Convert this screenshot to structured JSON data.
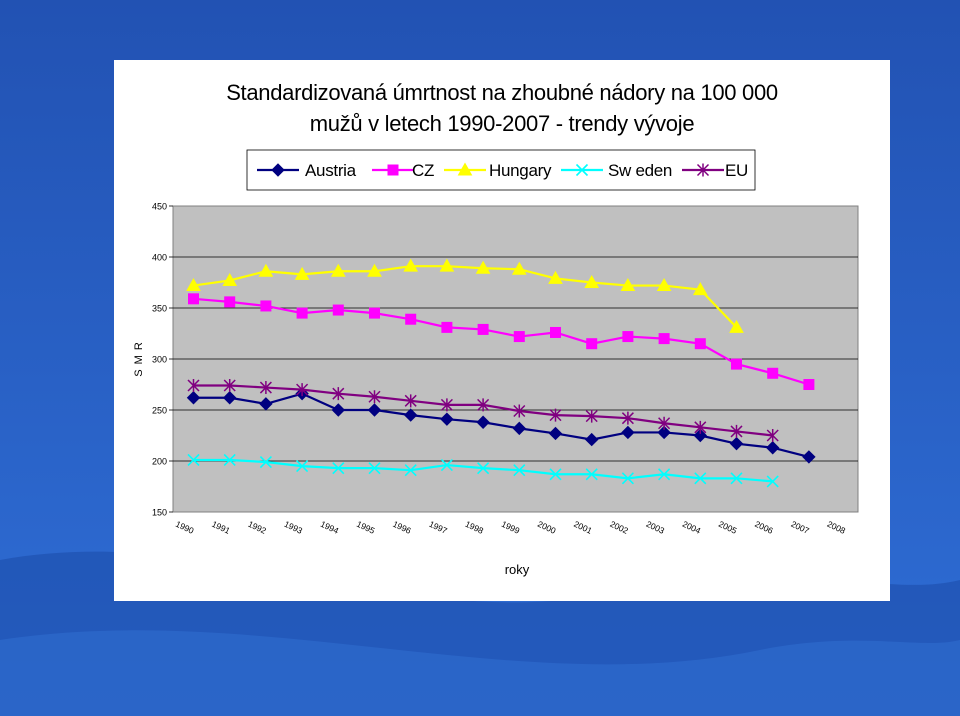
{
  "colors": {
    "background_top": "#2252b3",
    "background_bottom": "#2f6ed6",
    "wave": "#1c4aa8",
    "plot_area": "#c0c0c0",
    "austria": "#000080",
    "cz": "#ff00ff",
    "hungary": "#ffff00",
    "sweden": "#00ffff",
    "eu": "#800080"
  },
  "chart_data": {
    "type": "line",
    "title_lines": [
      "Standardizovaná úmrtnost na zhoubné nádory na 100 000",
      "mužů v letech 1990-2007 - trendy vývoje"
    ],
    "xlabel": "roky",
    "ylabel": "S M R",
    "ylim": [
      150,
      450
    ],
    "yticks": [
      "150",
      "200",
      "250",
      "300",
      "350",
      "400",
      "450"
    ],
    "categories": [
      "1990",
      "1991",
      "1992",
      "1993",
      "1994",
      "1995",
      "1996",
      "1997",
      "1998",
      "1999",
      "2000",
      "2001",
      "2002",
      "2003",
      "2004",
      "2005",
      "2006",
      "2007",
      "2008"
    ],
    "grid": "horizontal",
    "legend_position": "top",
    "series": [
      {
        "name": "Austria",
        "color_key": "austria",
        "marker": "diamond",
        "values": [
          262,
          262,
          256,
          266,
          250,
          250,
          245,
          241,
          238,
          232,
          227,
          221,
          228,
          228,
          225,
          217,
          213,
          204,
          null
        ]
      },
      {
        "name": "CZ",
        "color_key": "cz",
        "marker": "square",
        "values": [
          359,
          356,
          352,
          345,
          348,
          345,
          339,
          331,
          329,
          322,
          326,
          315,
          322,
          320,
          315,
          295,
          286,
          275,
          null
        ]
      },
      {
        "name": "Hungary",
        "color_key": "hungary",
        "marker": "triangle",
        "values": [
          372,
          377,
          386,
          383,
          386,
          386,
          391,
          391,
          389,
          388,
          379,
          375,
          372,
          372,
          368,
          331,
          null,
          null,
          null
        ]
      },
      {
        "name": "Sw eden",
        "color_key": "sweden",
        "marker": "x",
        "values": [
          201,
          201,
          199,
          195,
          193,
          193,
          191,
          196,
          193,
          191,
          187,
          187,
          183,
          187,
          183,
          183,
          180,
          null,
          null
        ]
      },
      {
        "name": "EU",
        "color_key": "eu",
        "marker": "star",
        "values": [
          274,
          274,
          272,
          270,
          266,
          263,
          259,
          255,
          255,
          249,
          245,
          244,
          242,
          237,
          233,
          229,
          225,
          null,
          null
        ]
      }
    ]
  }
}
